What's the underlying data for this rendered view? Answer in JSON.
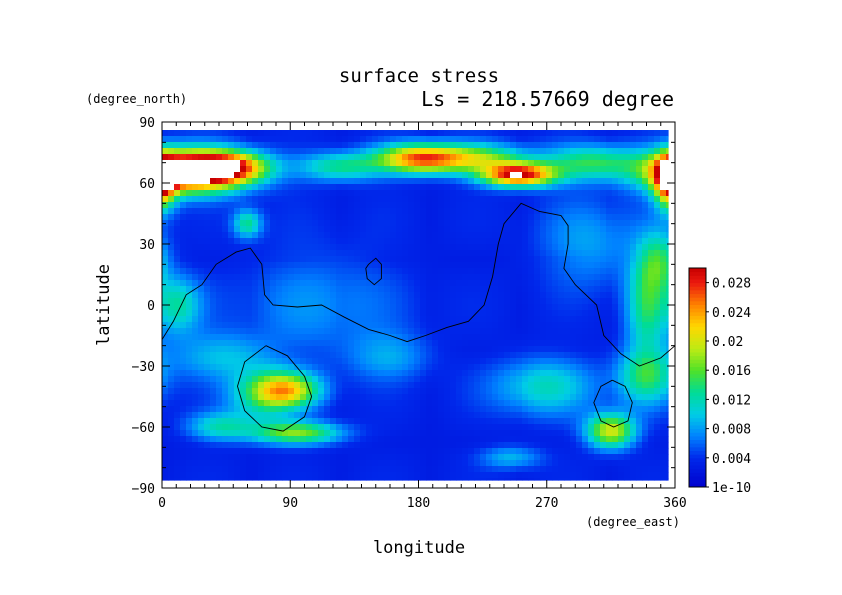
{
  "chart_data": {
    "type": "heatmap",
    "title": "surface stress",
    "subtitle": "Ls = 218.57669 degree",
    "xlabel": "longitude",
    "ylabel": "latitude",
    "x_units": "(degree_east)",
    "y_units": "(degree_north)",
    "xlim": [
      0,
      360
    ],
    "ylim": [
      -90,
      90
    ],
    "x_ticks": [
      0,
      90,
      180,
      270,
      360
    ],
    "y_ticks": [
      -90,
      -60,
      -30,
      0,
      30,
      60,
      90
    ],
    "x_tick_labels": [
      "0",
      "90",
      "180",
      "270",
      "360"
    ],
    "y_tick_labels": [
      "−90",
      "−60",
      "−30",
      "0",
      "30",
      "60",
      "90"
    ],
    "colorbar": {
      "min": 0,
      "max": 0.03,
      "tick_values": [
        0,
        0.004,
        0.008,
        0.012,
        0.016,
        0.02,
        0.024,
        0.028
      ],
      "tick_labels": [
        "1e-10",
        "0.004",
        "0.008",
        "0.012",
        "0.016",
        "0.02",
        "0.024",
        "0.028"
      ]
    },
    "colors": {
      "low": "#0000cd",
      "mid_low": "#00a0ff",
      "mid": "#00d8a0",
      "mid_high": "#60e030",
      "high": "#ffd000",
      "max": "#e81010",
      "saturated": "#ffffff"
    },
    "field_sources": [
      {
        "lon": 20,
        "lat": 66,
        "amp": 0.036,
        "slon": 28,
        "slat": 7
      },
      {
        "lon": 50,
        "lat": 68,
        "amp": 0.014,
        "slon": 18,
        "slat": 5
      },
      {
        "lon": 182,
        "lat": 72,
        "amp": 0.023,
        "slon": 22,
        "slat": 5
      },
      {
        "lon": 250,
        "lat": 64,
        "amp": 0.026,
        "slon": 18,
        "slat": 4
      },
      {
        "lon": 225,
        "lat": 72,
        "amp": 0.012,
        "slon": 22,
        "slat": 5
      },
      {
        "lon": 125,
        "lat": 68,
        "amp": 0.01,
        "slon": 22,
        "slat": 5
      },
      {
        "lon": 300,
        "lat": 70,
        "amp": 0.011,
        "slon": 25,
        "slat": 6
      },
      {
        "lon": 358,
        "lat": 60,
        "amp": 0.024,
        "slon": 8,
        "slat": 9
      },
      {
        "lon": 60,
        "lat": 40,
        "amp": 0.01,
        "slon": 7,
        "slat": 5
      },
      {
        "lon": 88,
        "lat": -42,
        "amp": 0.017,
        "slon": 16,
        "slat": 6
      },
      {
        "lon": 68,
        "lat": -45,
        "amp": 0.008,
        "slon": 16,
        "slat": 10
      },
      {
        "lon": 95,
        "lat": -63,
        "amp": 0.014,
        "slon": 22,
        "slat": 4
      },
      {
        "lon": 40,
        "lat": -60,
        "amp": 0.008,
        "slon": 16,
        "slat": 5
      },
      {
        "lon": 315,
        "lat": -62,
        "amp": 0.017,
        "slon": 12,
        "slat": 6
      },
      {
        "lon": 340,
        "lat": -35,
        "amp": 0.01,
        "slon": 15,
        "slat": 10
      },
      {
        "lon": 268,
        "lat": -40,
        "amp": 0.008,
        "slon": 25,
        "slat": 10
      },
      {
        "lon": 340,
        "lat": 0,
        "amp": 0.01,
        "slon": 10,
        "slat": 18
      },
      {
        "lon": 10,
        "lat": 0,
        "amp": 0.009,
        "slon": 12,
        "slat": 10
      },
      {
        "lon": 40,
        "lat": -25,
        "amp": 0.006,
        "slon": 25,
        "slat": 8
      },
      {
        "lon": 160,
        "lat": -25,
        "amp": 0.005,
        "slon": 20,
        "slat": 8
      },
      {
        "lon": 350,
        "lat": 22,
        "amp": 0.009,
        "slon": 10,
        "slat": 10
      },
      {
        "lon": 110,
        "lat": 0,
        "amp": 0.004,
        "slon": 40,
        "slat": 20
      },
      {
        "lon": 300,
        "lat": 30,
        "amp": 0.005,
        "slon": 25,
        "slat": 15
      },
      {
        "lon": 245,
        "lat": -75,
        "amp": 0.006,
        "slon": 15,
        "slat": 4
      }
    ],
    "outlines": [
      [
        [
          0,
          -17
        ],
        [
          8,
          -8
        ],
        [
          17,
          5
        ],
        [
          28,
          10
        ],
        [
          38,
          20
        ],
        [
          52,
          26
        ],
        [
          62,
          28
        ],
        [
          70,
          20
        ],
        [
          72,
          5
        ],
        [
          78,
          0
        ],
        [
          95,
          -1
        ],
        [
          112,
          0
        ],
        [
          128,
          -6
        ],
        [
          145,
          -12
        ],
        [
          160,
          -15
        ],
        [
          172,
          -18
        ],
        [
          185,
          -15
        ],
        [
          200,
          -11
        ],
        [
          215,
          -8
        ],
        [
          226,
          0
        ],
        [
          232,
          14
        ],
        [
          236,
          30
        ],
        [
          240,
          40
        ],
        [
          252,
          50
        ],
        [
          265,
          46
        ],
        [
          280,
          44
        ],
        [
          285,
          39
        ],
        [
          285,
          30
        ],
        [
          282,
          18
        ],
        [
          290,
          10
        ],
        [
          305,
          0
        ],
        [
          310,
          -15
        ],
        [
          322,
          -24
        ],
        [
          335,
          -30
        ],
        [
          350,
          -26
        ],
        [
          360,
          -20
        ]
      ],
      [
        [
          145,
          20
        ],
        [
          150,
          23
        ],
        [
          154,
          20
        ],
        [
          154,
          13
        ],
        [
          149,
          10
        ],
        [
          144,
          13
        ],
        [
          143,
          18
        ],
        [
          145,
          20
        ]
      ],
      [
        [
          73,
          -20
        ],
        [
          88,
          -25
        ],
        [
          100,
          -35
        ],
        [
          105,
          -45
        ],
        [
          100,
          -55
        ],
        [
          85,
          -62
        ],
        [
          70,
          -60
        ],
        [
          58,
          -52
        ],
        [
          53,
          -40
        ],
        [
          58,
          -28
        ],
        [
          73,
          -20
        ]
      ],
      [
        [
          316,
          -37
        ],
        [
          325,
          -40
        ],
        [
          330,
          -48
        ],
        [
          327,
          -57
        ],
        [
          317,
          -60
        ],
        [
          308,
          -57
        ],
        [
          303,
          -48
        ],
        [
          308,
          -40
        ],
        [
          316,
          -37
        ]
      ]
    ]
  }
}
